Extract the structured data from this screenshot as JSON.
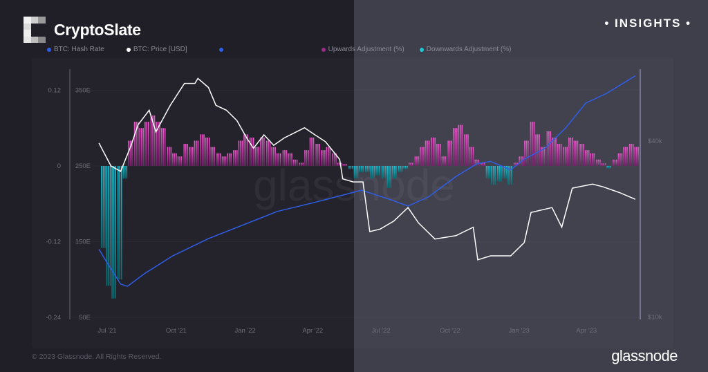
{
  "header": {
    "brand": "CryptoSlate",
    "badge": "• INSIGHTS •"
  },
  "footer": {
    "copyright": "© 2023 Glassnode. All Rights Reserved.",
    "logo_text": "glassnode",
    "watermark": "glassnode"
  },
  "colors": {
    "hash_rate": "#2f5fe8",
    "price": "#ffffff",
    "percent_change": "#2f5fe8",
    "upwards": "#d23fb0",
    "downwards": "#1fc3d6",
    "bg_left": "#201f28",
    "bg_right": "#3f3e4b"
  },
  "chart_data": {
    "type": "line+bar",
    "legend": [
      {
        "name": "BTC: Hash Rate",
        "color": "#2f5fe8"
      },
      {
        "name": "BTC: Price [USD]",
        "color": "#ffffff"
      },
      {
        "name": "",
        "color": "#2f5fe8"
      },
      {
        "name": "Upwards Adjustment (%)",
        "color": "#9a2c8a"
      },
      {
        "name": "Downwards Adjustment (%)",
        "color": "#1fc3d6"
      }
    ],
    "x_ticks": [
      "Jul '21",
      "Oct '21",
      "Jan '22",
      "Apr '22",
      "Jul '22",
      "Oct '22",
      "Jan '23",
      "Apr '23"
    ],
    "x_tick_dates": [
      "2021-07-01",
      "2021-10-01",
      "2022-01-01",
      "2022-04-01",
      "2022-07-01",
      "2022-10-01",
      "2023-01-01",
      "2023-04-01"
    ],
    "y_left_adjustment": {
      "ticks": [
        "0.12",
        "0",
        "-0.12",
        "-0.24"
      ],
      "range": [
        -0.24,
        0.12
      ]
    },
    "y_left_hashrate": {
      "ticks": [
        "350E",
        "250E",
        "150E",
        "50E"
      ],
      "range": [
        50,
        350
      ]
    },
    "y_right_price": {
      "ticks": [
        "$40k",
        "$10k"
      ],
      "scale": "log"
    },
    "price": [
      [
        "2021-06-20",
        39400
      ],
      [
        "2021-07-06",
        32900
      ],
      [
        "2021-07-19",
        31500
      ],
      [
        "2021-08-02",
        38700
      ],
      [
        "2021-08-11",
        45400
      ],
      [
        "2021-08-26",
        51000
      ],
      [
        "2021-09-04",
        43000
      ],
      [
        "2021-09-23",
        52900
      ],
      [
        "2021-10-12",
        63000
      ],
      [
        "2021-10-26",
        63000
      ],
      [
        "2021-10-30",
        65500
      ],
      [
        "2021-11-13",
        61000
      ],
      [
        "2021-11-23",
        53000
      ],
      [
        "2021-12-07",
        51000
      ],
      [
        "2021-12-21",
        47000
      ],
      [
        "2022-01-03",
        41000
      ],
      [
        "2022-01-12",
        37800
      ],
      [
        "2022-01-26",
        42000
      ],
      [
        "2022-02-08",
        38700
      ],
      [
        "2022-02-22",
        41000
      ],
      [
        "2022-03-21",
        44400
      ],
      [
        "2022-04-04",
        42000
      ],
      [
        "2022-04-18",
        39800
      ],
      [
        "2022-05-07",
        34600
      ],
      [
        "2022-05-11",
        29700
      ],
      [
        "2022-05-25",
        29000
      ],
      [
        "2022-06-07",
        29000
      ],
      [
        "2022-06-16",
        19600
      ],
      [
        "2022-06-30",
        20000
      ],
      [
        "2022-07-18",
        21300
      ],
      [
        "2022-08-06",
        23700
      ],
      [
        "2022-08-20",
        21000
      ],
      [
        "2022-09-11",
        18500
      ],
      [
        "2022-10-09",
        19000
      ],
      [
        "2022-11-01",
        20300
      ],
      [
        "2022-11-07",
        15700
      ],
      [
        "2022-11-24",
        16200
      ],
      [
        "2022-12-21",
        16200
      ],
      [
        "2023-01-08",
        18000
      ],
      [
        "2023-01-17",
        22800
      ],
      [
        "2023-02-14",
        23700
      ],
      [
        "2023-02-27",
        20300
      ],
      [
        "2023-03-13",
        27600
      ],
      [
        "2023-04-09",
        28500
      ],
      [
        "2023-04-23",
        27900
      ],
      [
        "2023-05-16",
        26600
      ],
      [
        "2023-06-05",
        25300
      ]
    ],
    "hash_rate": [
      [
        "2021-06-20",
        140
      ],
      [
        "2021-07-01",
        122
      ],
      [
        "2021-07-19",
        94
      ],
      [
        "2021-07-28",
        91
      ],
      [
        "2021-08-20",
        108
      ],
      [
        "2021-09-26",
        131
      ],
      [
        "2021-11-13",
        154
      ],
      [
        "2021-12-29",
        172
      ],
      [
        "2022-02-13",
        190
      ],
      [
        "2022-03-31",
        201
      ],
      [
        "2022-05-17",
        213
      ],
      [
        "2022-06-05",
        218
      ],
      [
        "2022-07-12",
        206
      ],
      [
        "2022-08-06",
        197
      ],
      [
        "2022-09-02",
        209
      ],
      [
        "2022-10-09",
        236
      ],
      [
        "2022-11-06",
        253
      ],
      [
        "2022-11-24",
        256
      ],
      [
        "2022-12-21",
        245
      ],
      [
        "2023-01-08",
        259
      ],
      [
        "2023-02-04",
        273
      ],
      [
        "2023-03-04",
        300
      ],
      [
        "2023-03-31",
        333
      ],
      [
        "2023-04-28",
        346
      ],
      [
        "2023-06-05",
        369
      ]
    ],
    "adjustment": [
      [
        "2021-06-26",
        -0.13
      ],
      [
        "2021-07-03",
        -0.19
      ],
      [
        "2021-07-10",
        -0.21
      ],
      [
        "2021-07-18",
        -0.18
      ],
      [
        "2021-07-25",
        -0.02
      ],
      [
        "2021-08-01",
        0.04
      ],
      [
        "2021-08-09",
        0.07
      ],
      [
        "2021-08-16",
        0.06
      ],
      [
        "2021-08-23",
        0.07
      ],
      [
        "2021-08-31",
        0.08
      ],
      [
        "2021-09-07",
        0.07
      ],
      [
        "2021-09-14",
        0.06
      ],
      [
        "2021-09-22",
        0.03
      ],
      [
        "2021-09-29",
        0.02
      ],
      [
        "2021-10-06",
        0.015
      ],
      [
        "2021-10-14",
        0.035
      ],
      [
        "2021-10-21",
        0.03
      ],
      [
        "2021-10-28",
        0.04
      ],
      [
        "2021-11-05",
        0.05
      ],
      [
        "2021-11-12",
        0.045
      ],
      [
        "2021-11-19",
        0.03
      ],
      [
        "2021-11-27",
        0.02
      ],
      [
        "2021-12-04",
        0.015
      ],
      [
        "2021-12-11",
        0.02
      ],
      [
        "2021-12-19",
        0.025
      ],
      [
        "2021-12-26",
        0.04
      ],
      [
        "2022-01-02",
        0.05
      ],
      [
        "2022-01-10",
        0.045
      ],
      [
        "2022-01-17",
        0.03
      ],
      [
        "2022-01-24",
        0.045
      ],
      [
        "2022-02-01",
        0.04
      ],
      [
        "2022-02-08",
        0.03
      ],
      [
        "2022-02-15",
        0.02
      ],
      [
        "2022-02-23",
        0.025
      ],
      [
        "2022-03-02",
        0.02
      ],
      [
        "2022-03-09",
        0.01
      ],
      [
        "2022-03-17",
        0.005
      ],
      [
        "2022-03-24",
        0.025
      ],
      [
        "2022-03-31",
        0.045
      ],
      [
        "2022-04-08",
        0.035
      ],
      [
        "2022-04-15",
        0.025
      ],
      [
        "2022-04-22",
        0.03
      ],
      [
        "2022-04-30",
        0.02
      ],
      [
        "2022-05-07",
        0.005
      ],
      [
        "2022-05-14",
        0.003
      ],
      [
        "2022-05-22",
        -0.005
      ],
      [
        "2022-05-29",
        -0.02
      ],
      [
        "2022-06-05",
        -0.01
      ],
      [
        "2022-06-13",
        -0.01
      ],
      [
        "2022-06-20",
        -0.02
      ],
      [
        "2022-06-27",
        -0.015
      ],
      [
        "2022-07-05",
        -0.02
      ],
      [
        "2022-07-12",
        -0.035
      ],
      [
        "2022-07-19",
        -0.02
      ],
      [
        "2022-07-27",
        -0.01
      ],
      [
        "2022-08-03",
        -0.005
      ],
      [
        "2022-08-10",
        0.005
      ],
      [
        "2022-08-18",
        0.015
      ],
      [
        "2022-08-25",
        0.03
      ],
      [
        "2022-09-01",
        0.04
      ],
      [
        "2022-09-09",
        0.045
      ],
      [
        "2022-09-16",
        0.035
      ],
      [
        "2022-09-23",
        0.015
      ],
      [
        "2022-10-01",
        0.04
      ],
      [
        "2022-10-08",
        0.06
      ],
      [
        "2022-10-15",
        0.065
      ],
      [
        "2022-10-23",
        0.05
      ],
      [
        "2022-10-30",
        0.03
      ],
      [
        "2022-11-06",
        0.01
      ],
      [
        "2022-11-14",
        0.005
      ],
      [
        "2022-11-21",
        -0.02
      ],
      [
        "2022-11-28",
        -0.03
      ],
      [
        "2022-12-06",
        -0.025
      ],
      [
        "2022-12-13",
        -0.02
      ],
      [
        "2022-12-20",
        -0.03
      ],
      [
        "2022-12-28",
        0.005
      ],
      [
        "2023-01-04",
        0.015
      ],
      [
        "2023-01-11",
        0.04
      ],
      [
        "2023-01-19",
        0.07
      ],
      [
        "2023-01-26",
        0.05
      ],
      [
        "2023-02-02",
        0.03
      ],
      [
        "2023-02-10",
        0.055
      ],
      [
        "2023-02-17",
        0.045
      ],
      [
        "2023-02-24",
        0.035
      ],
      [
        "2023-03-04",
        0.03
      ],
      [
        "2023-03-11",
        0.045
      ],
      [
        "2023-03-18",
        0.04
      ],
      [
        "2023-03-26",
        0.035
      ],
      [
        "2023-04-02",
        0.025
      ],
      [
        "2023-04-09",
        0.02
      ],
      [
        "2023-04-17",
        0.01
      ],
      [
        "2023-04-24",
        0.004
      ],
      [
        "2023-05-01",
        -0.004
      ],
      [
        "2023-05-09",
        0.01
      ],
      [
        "2023-05-16",
        0.02
      ],
      [
        "2023-05-23",
        0.03
      ],
      [
        "2023-05-31",
        0.035
      ],
      [
        "2023-06-07",
        0.03
      ]
    ]
  }
}
